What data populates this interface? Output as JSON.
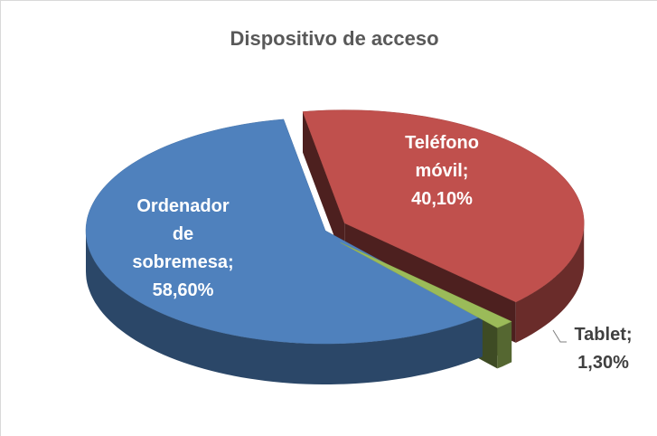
{
  "chart_data": {
    "type": "pie3d",
    "title": "Dispositivo de acceso",
    "categories": [
      "Ordenador de sobremesa",
      "Teléfono móvil",
      "Tablet"
    ],
    "values": [
      58.6,
      40.1,
      1.3
    ],
    "value_labels": [
      "58,60%",
      "40,10%",
      "1,30%"
    ],
    "label_separator": ";",
    "colors": [
      "#4f81bd",
      "#c0504d",
      "#9bbb59"
    ],
    "exploded": [
      false,
      true,
      true
    ]
  }
}
